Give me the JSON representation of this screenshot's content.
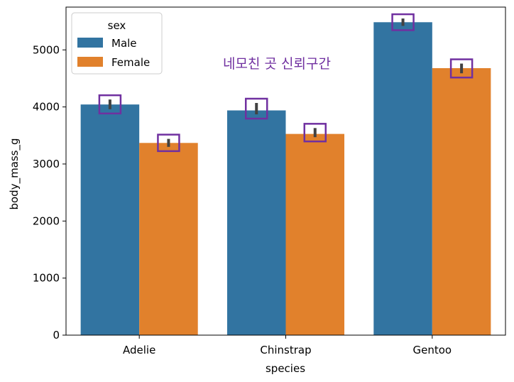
{
  "chart_data": {
    "type": "bar",
    "title": "",
    "xlabel": "species",
    "ylabel": "body_mass_g",
    "categories": [
      "Adelie",
      "Chinstrap",
      "Gentoo"
    ],
    "series": [
      {
        "name": "Male",
        "values": [
          4043,
          3939,
          5485
        ],
        "ci": [
          [
            3960,
            4130
          ],
          [
            3870,
            4070
          ],
          [
            5420,
            5550
          ]
        ],
        "color": "#3274a1"
      },
      {
        "name": "Female",
        "values": [
          3369,
          3527,
          4680
        ],
        "ci": [
          [
            3300,
            3440
          ],
          [
            3470,
            3630
          ],
          [
            4590,
            4760
          ]
        ],
        "color": "#e1812c"
      }
    ],
    "ylim": [
      0,
      5750
    ],
    "yticks": [
      0,
      1000,
      2000,
      3000,
      4000,
      5000
    ],
    "grid": false,
    "legend": {
      "title": "sex",
      "position": "top-left",
      "entries": [
        "Male",
        "Female"
      ]
    },
    "annotation": {
      "text": "네모친 곳 신뢰구간",
      "color": "#7030a0"
    },
    "highlight_color": "#7030a0",
    "errorbar_color": "#424242"
  }
}
